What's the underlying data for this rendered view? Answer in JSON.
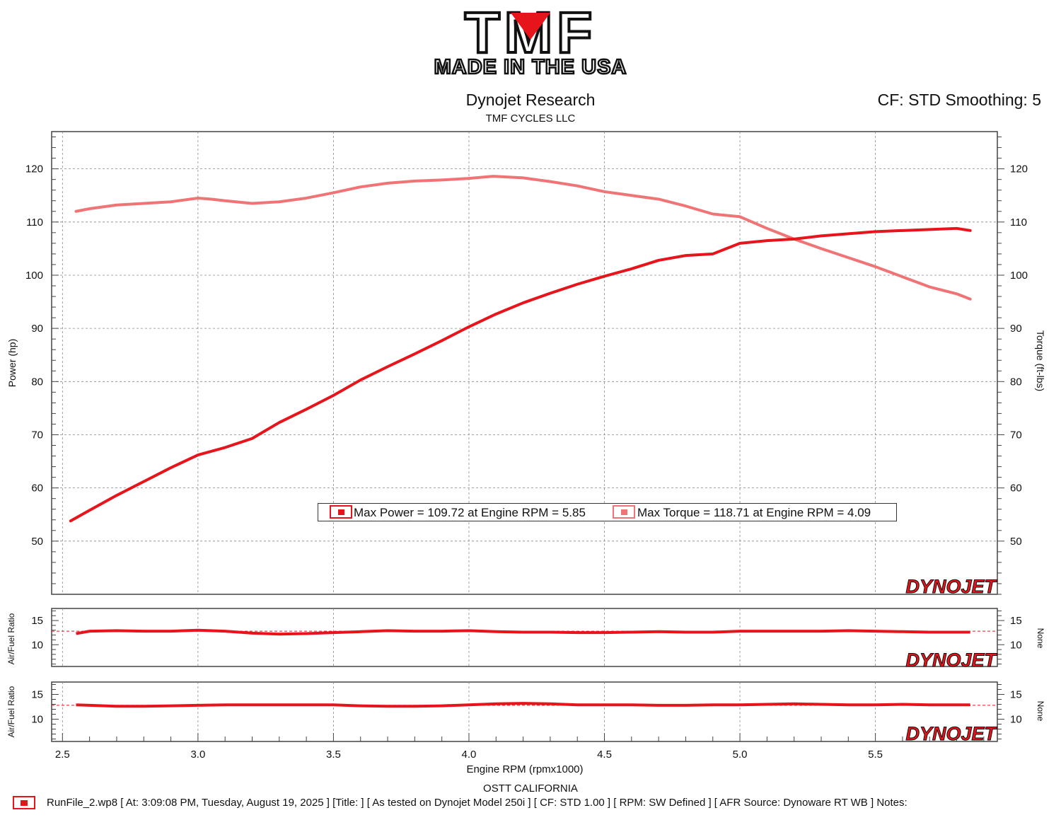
{
  "header": {
    "title": "Dynojet Research",
    "subtitle": "TMF CYCLES LLC",
    "cf_text": "CF: STD Smoothing: 5",
    "logo_text": "TMF",
    "logo_tagline": "MADE IN THE USA"
  },
  "watermark_text": "DYNOJET",
  "colors": {
    "power": "#e8141b",
    "torque": "#f07475",
    "afr": "#e8141b",
    "grid": "#888888",
    "logo_red": "#e8141b"
  },
  "legend": {
    "power_entry": "Max Power = 109.72 at Engine RPM = 5.85",
    "torque_entry": "Max Torque = 118.71 at Engine RPM = 4.09"
  },
  "footer": {
    "location": "OSTT CALIFORNIA",
    "run_info": "RunFile_2.wp8 [ At: 3:09:08 PM, Tuesday, August 19, 2025 ] [Title: ]  [ As tested on Dynojet Model 250i ] [ CF: STD 1.00 ] [ RPM: SW Defined ] [ AFR Source: Dynoware RT WB ] Notes:"
  },
  "chart_data": [
    {
      "type": "line",
      "xlabel": "Engine RPM (rpmx1000)",
      "ylabel": "Power (hp)",
      "y2label": "Torque (ft-lbs)",
      "xlim": [
        2.46,
        5.95
      ],
      "ylim": [
        40,
        127
      ],
      "y2lim": [
        40,
        127
      ],
      "xticks": [
        "2.5",
        "3.0",
        "3.5",
        "4.0",
        "4.5",
        "5.0",
        "5.5"
      ],
      "yticks": [
        "50",
        "60",
        "70",
        "80",
        "90",
        "100",
        "110",
        "120"
      ],
      "y2ticks": [
        "50",
        "60",
        "70",
        "80",
        "90",
        "100",
        "110",
        "120"
      ],
      "grid": true,
      "series": [
        {
          "name": "Max Power",
          "axis": "left",
          "x": [
            2.53,
            2.6,
            2.7,
            2.8,
            2.9,
            3.0,
            3.1,
            3.2,
            3.3,
            3.4,
            3.5,
            3.6,
            3.7,
            3.8,
            3.9,
            4.0,
            4.1,
            4.2,
            4.3,
            4.4,
            4.5,
            4.6,
            4.7,
            4.8,
            4.9,
            5.0,
            5.1,
            5.2,
            5.3,
            5.4,
            5.5,
            5.6,
            5.7,
            5.8,
            5.85
          ],
          "values": [
            53.8,
            55.8,
            58.6,
            61.2,
            63.8,
            66.2,
            67.6,
            69.3,
            72.3,
            74.8,
            77.4,
            80.3,
            82.8,
            85.2,
            87.7,
            90.3,
            92.7,
            94.8,
            96.6,
            98.3,
            99.8,
            101.2,
            102.8,
            103.7,
            104.0,
            106.0,
            106.5,
            106.8,
            107.4,
            107.8,
            108.2,
            108.4,
            108.6,
            108.8,
            108.4
          ]
        },
        {
          "name": "Max Torque",
          "axis": "right",
          "x": [
            2.55,
            2.6,
            2.7,
            2.8,
            2.9,
            3.0,
            3.05,
            3.1,
            3.2,
            3.3,
            3.4,
            3.5,
            3.6,
            3.7,
            3.8,
            3.9,
            4.0,
            4.09,
            4.2,
            4.3,
            4.4,
            4.5,
            4.6,
            4.7,
            4.8,
            4.9,
            5.0,
            5.1,
            5.2,
            5.3,
            5.4,
            5.5,
            5.6,
            5.7,
            5.8,
            5.85
          ],
          "values": [
            112.0,
            112.5,
            113.2,
            113.5,
            113.8,
            114.5,
            114.3,
            114.0,
            113.5,
            113.8,
            114.5,
            115.5,
            116.6,
            117.3,
            117.7,
            117.9,
            118.2,
            118.6,
            118.3,
            117.6,
            116.8,
            115.7,
            115.0,
            114.3,
            113.0,
            111.5,
            111.0,
            108.8,
            106.8,
            105.0,
            103.3,
            101.6,
            99.7,
            97.8,
            96.5,
            95.5
          ]
        }
      ]
    },
    {
      "type": "line",
      "ylabel": "Air/Fuel Ratio",
      "y2label": "None",
      "xlim": [
        2.46,
        5.95
      ],
      "ylim": [
        5.5,
        17.5
      ],
      "yticks": [
        "10",
        "15"
      ],
      "y2ticks": [
        "10",
        "15"
      ],
      "reference_line": 12.8,
      "series": [
        {
          "x": [
            2.55,
            2.6,
            2.7,
            2.8,
            2.9,
            3.0,
            3.1,
            3.2,
            3.3,
            3.4,
            3.5,
            3.6,
            3.7,
            3.8,
            3.9,
            4.0,
            4.1,
            4.2,
            4.3,
            4.4,
            4.5,
            4.6,
            4.7,
            4.8,
            4.9,
            5.0,
            5.1,
            5.2,
            5.3,
            5.4,
            5.5,
            5.6,
            5.7,
            5.8,
            5.85
          ],
          "values": [
            12.3,
            12.8,
            12.9,
            12.8,
            12.8,
            13.0,
            12.8,
            12.4,
            12.2,
            12.3,
            12.5,
            12.7,
            12.9,
            12.8,
            12.8,
            12.9,
            12.7,
            12.6,
            12.6,
            12.5,
            12.5,
            12.6,
            12.7,
            12.6,
            12.6,
            12.8,
            12.8,
            12.8,
            12.8,
            12.9,
            12.8,
            12.7,
            12.6,
            12.6,
            12.6
          ]
        }
      ]
    },
    {
      "type": "line",
      "ylabel": "Air/Fuel Ratio",
      "y2label": "None",
      "xlim": [
        2.46,
        5.95
      ],
      "ylim": [
        5.5,
        17.5
      ],
      "yticks": [
        "10",
        "15"
      ],
      "y2ticks": [
        "10",
        "15"
      ],
      "xticks": [
        "2.5",
        "3.0",
        "3.5",
        "4.0",
        "4.5",
        "5.0",
        "5.5"
      ],
      "reference_line": 12.8,
      "series": [
        {
          "x": [
            2.55,
            2.6,
            2.7,
            2.8,
            2.9,
            3.0,
            3.1,
            3.2,
            3.3,
            3.4,
            3.5,
            3.6,
            3.7,
            3.8,
            3.9,
            4.0,
            4.1,
            4.2,
            4.3,
            4.4,
            4.5,
            4.6,
            4.7,
            4.8,
            4.9,
            5.0,
            5.1,
            5.2,
            5.3,
            5.4,
            5.5,
            5.6,
            5.7,
            5.8,
            5.85
          ],
          "values": [
            12.9,
            12.8,
            12.6,
            12.6,
            12.7,
            12.8,
            12.9,
            12.9,
            12.9,
            12.9,
            12.9,
            12.7,
            12.6,
            12.6,
            12.7,
            12.9,
            13.1,
            13.2,
            13.1,
            12.9,
            12.9,
            12.9,
            12.8,
            12.8,
            12.9,
            12.9,
            13.0,
            13.1,
            13.0,
            12.9,
            12.9,
            13.0,
            12.9,
            12.9,
            12.9
          ]
        }
      ]
    }
  ]
}
